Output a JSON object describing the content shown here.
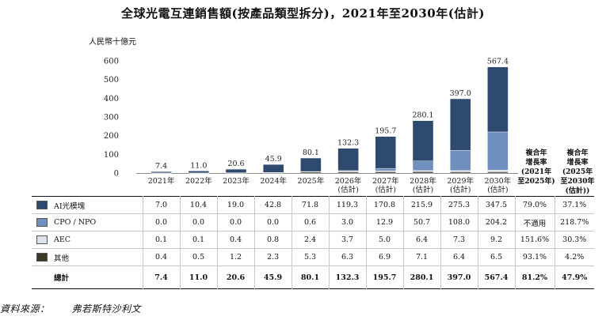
{
  "title": "全球光電互連銷售額(按產品類型拆分)，2021年至2030年(估計)",
  "source_label": "資料來源：",
  "source_text": "弗若斯特沙利文",
  "cagr_headers": [
    [
      "複合年",
      "增長率",
      "(2021年",
      "至2025年)"
    ],
    [
      "複合年",
      "增長率",
      "(2025年",
      "至2030年",
      "(估計))"
    ]
  ],
  "chart_data": {
    "type": "bar",
    "stacked": true,
    "ylabel": "人民幣十億元",
    "ylim": [
      0,
      600
    ],
    "yticks": [
      0,
      100,
      200,
      300,
      400,
      500,
      600
    ],
    "categories": [
      [
        "2021年"
      ],
      [
        "2022年"
      ],
      [
        "2023年"
      ],
      [
        "2024年"
      ],
      [
        "2025年"
      ],
      [
        "2026年",
        "(估計)"
      ],
      [
        "2027年",
        "(估計)"
      ],
      [
        "2028年",
        "(估計)"
      ],
      [
        "2029年",
        "(估計)"
      ],
      [
        "2030年",
        "(估計)"
      ]
    ],
    "totals": [
      "7.4",
      "11.0",
      "20.6",
      "45.9",
      "80.1",
      "132.3",
      "195.7",
      "280.1",
      "397.0",
      "567.4"
    ],
    "series": [
      {
        "name": "AI光模塊",
        "color": "#2e4a6e",
        "values": [
          7.0,
          10.4,
          19.0,
          42.8,
          71.8,
          119.3,
          170.8,
          215.9,
          275.3,
          347.5
        ],
        "labels": [
          "7.0",
          "10.4",
          "19.0",
          "42.8",
          "71.8",
          "119.3",
          "170.8",
          "215.9",
          "275.3",
          "347.5"
        ],
        "cagr": [
          "79.0%",
          "37.1%"
        ]
      },
      {
        "name": "CPO / NPO",
        "color": "#6f8fbe",
        "values": [
          0.0,
          0.0,
          0.0,
          0.0,
          0.6,
          3.0,
          12.9,
          50.7,
          108.0,
          204.2
        ],
        "labels": [
          "0.0",
          "0.0",
          "0.0",
          "0.0",
          "0.6",
          "3.0",
          "12.9",
          "50.7",
          "108.0",
          "204.2"
        ],
        "cagr": [
          "不適用",
          "218.7%"
        ]
      },
      {
        "name": "AEC",
        "color": "#dde3ea",
        "values": [
          0.1,
          0.1,
          0.4,
          0.8,
          2.4,
          3.7,
          5.0,
          6.4,
          7.3,
          9.2
        ],
        "labels": [
          "0.1",
          "0.1",
          "0.4",
          "0.8",
          "2.4",
          "3.7",
          "5.0",
          "6.4",
          "7.3",
          "9.2"
        ],
        "cagr": [
          "151.6%",
          "30.3%"
        ]
      },
      {
        "name": "其他",
        "color": "#3a3a26",
        "values": [
          0.4,
          0.5,
          1.2,
          2.3,
          5.3,
          6.3,
          6.9,
          7.1,
          6.4,
          6.5
        ],
        "labels": [
          "0.4",
          "0.5",
          "1.2",
          "2.3",
          "5.3",
          "6.3",
          "6.9",
          "7.1",
          "6.4",
          "6.5"
        ],
        "cagr": [
          "93.1%",
          "4.2%"
        ]
      }
    ],
    "total_row": {
      "name": "總計",
      "labels": [
        "7.4",
        "11.0",
        "20.6",
        "45.9",
        "80.1",
        "132.3",
        "195.7",
        "280.1",
        "397.0",
        "567.4"
      ],
      "cagr": [
        "81.2%",
        "47.9%"
      ]
    }
  }
}
